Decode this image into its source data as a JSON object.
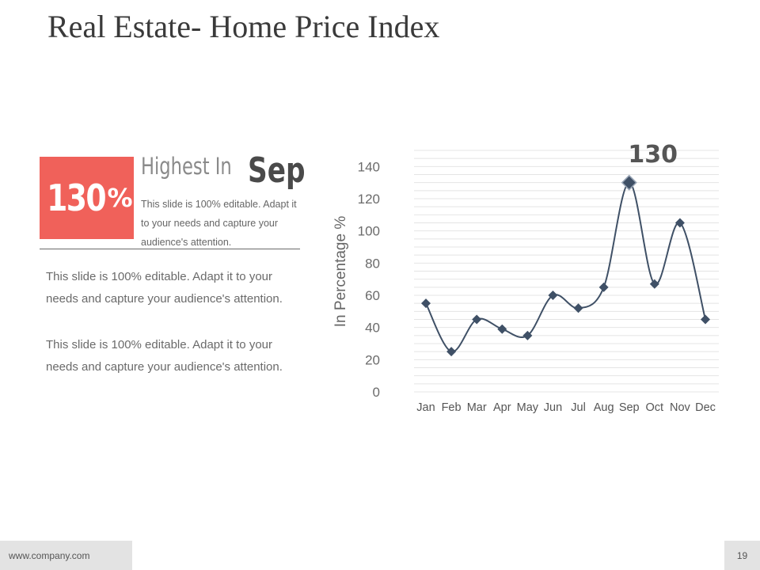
{
  "slide": {
    "title": "Real Estate- Home Price Index",
    "page_number": "19",
    "footer_url": "www.company.com"
  },
  "highlight": {
    "stat_value": "130",
    "stat_unit": "%",
    "heading_prefix": "Highest  In",
    "heading_month": "Sep",
    "description": "This slide is 100% editable. Adapt it to your needs and capture your audience's attention."
  },
  "paragraphs": [
    "This slide is 100% editable. Adapt it to your needs and capture your audience's attention.",
    "This slide is 100% editable. Adapt it to your needs and capture your audience's attention."
  ],
  "colors": {
    "accent": "#f0615a",
    "series": "#3f5066",
    "title": "#3a3a3a",
    "body_text": "#6a6a6a",
    "gridline": "#e4e4e4"
  },
  "chart_data": {
    "type": "line",
    "title": "",
    "xlabel": "",
    "ylabel": "In Percentage %",
    "categories": [
      "Jan",
      "Feb",
      "Mar",
      "Apr",
      "May",
      "Jun",
      "Jul",
      "Aug",
      "Sep",
      "Oct",
      "Nov",
      "Dec"
    ],
    "series": [
      {
        "name": "Home Price Index",
        "values": [
          55,
          25,
          45,
          39,
          35,
          60,
          52,
          65,
          130,
          67,
          105,
          45
        ]
      }
    ],
    "ylim": [
      0,
      150
    ],
    "yticks": [
      0,
      20,
      40,
      60,
      80,
      100,
      120,
      140
    ],
    "grid": true,
    "marker": "diamond",
    "smooth": true,
    "annotation": {
      "category": "Sep",
      "text": "130"
    }
  }
}
